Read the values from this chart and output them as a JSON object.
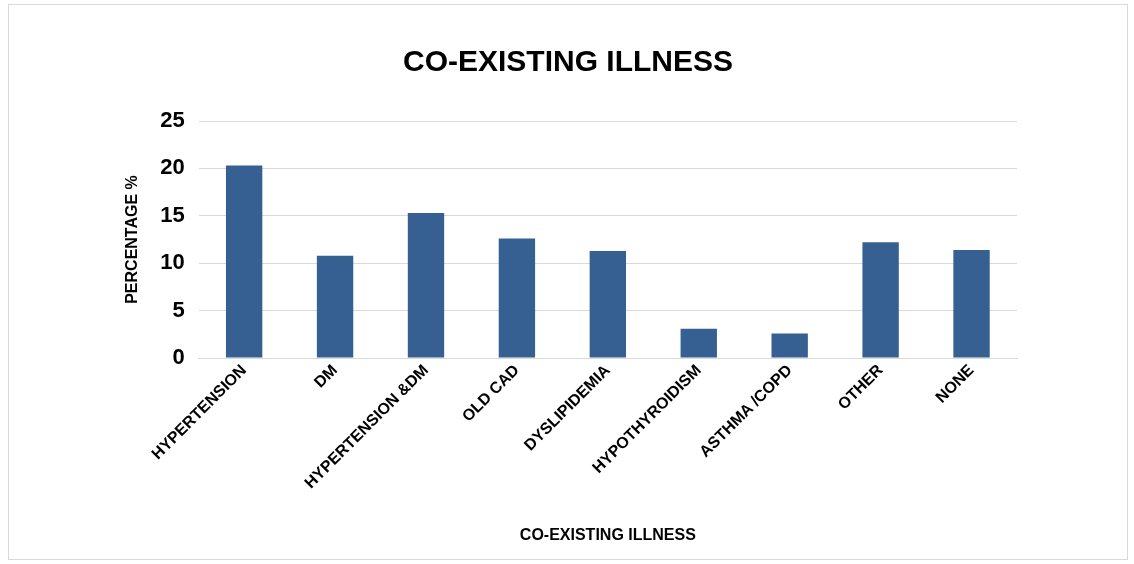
{
  "chart_data": {
    "type": "bar",
    "title": "CO-EXISTING ILLNESS",
    "xlabel": "CO-EXISTING ILLNESS",
    "ylabel": "PERCENTAGE %",
    "categories": [
      "HYPERTENSION",
      "DM",
      "HYPERTENSION &DM",
      "OLD CAD",
      "DYSLIPIDEMIA",
      "HYPOTHYROIDISM",
      "ASTHMA /COPD",
      "OTHER",
      "NONE"
    ],
    "values": [
      20.3,
      10.8,
      15.3,
      12.6,
      11.3,
      3.1,
      2.6,
      12.2,
      11.4
    ],
    "color": "#376092",
    "ylim": [
      0,
      25
    ],
    "yticks": [
      0,
      5,
      10,
      15,
      20,
      25
    ],
    "grid": "y",
    "legend": false
  }
}
